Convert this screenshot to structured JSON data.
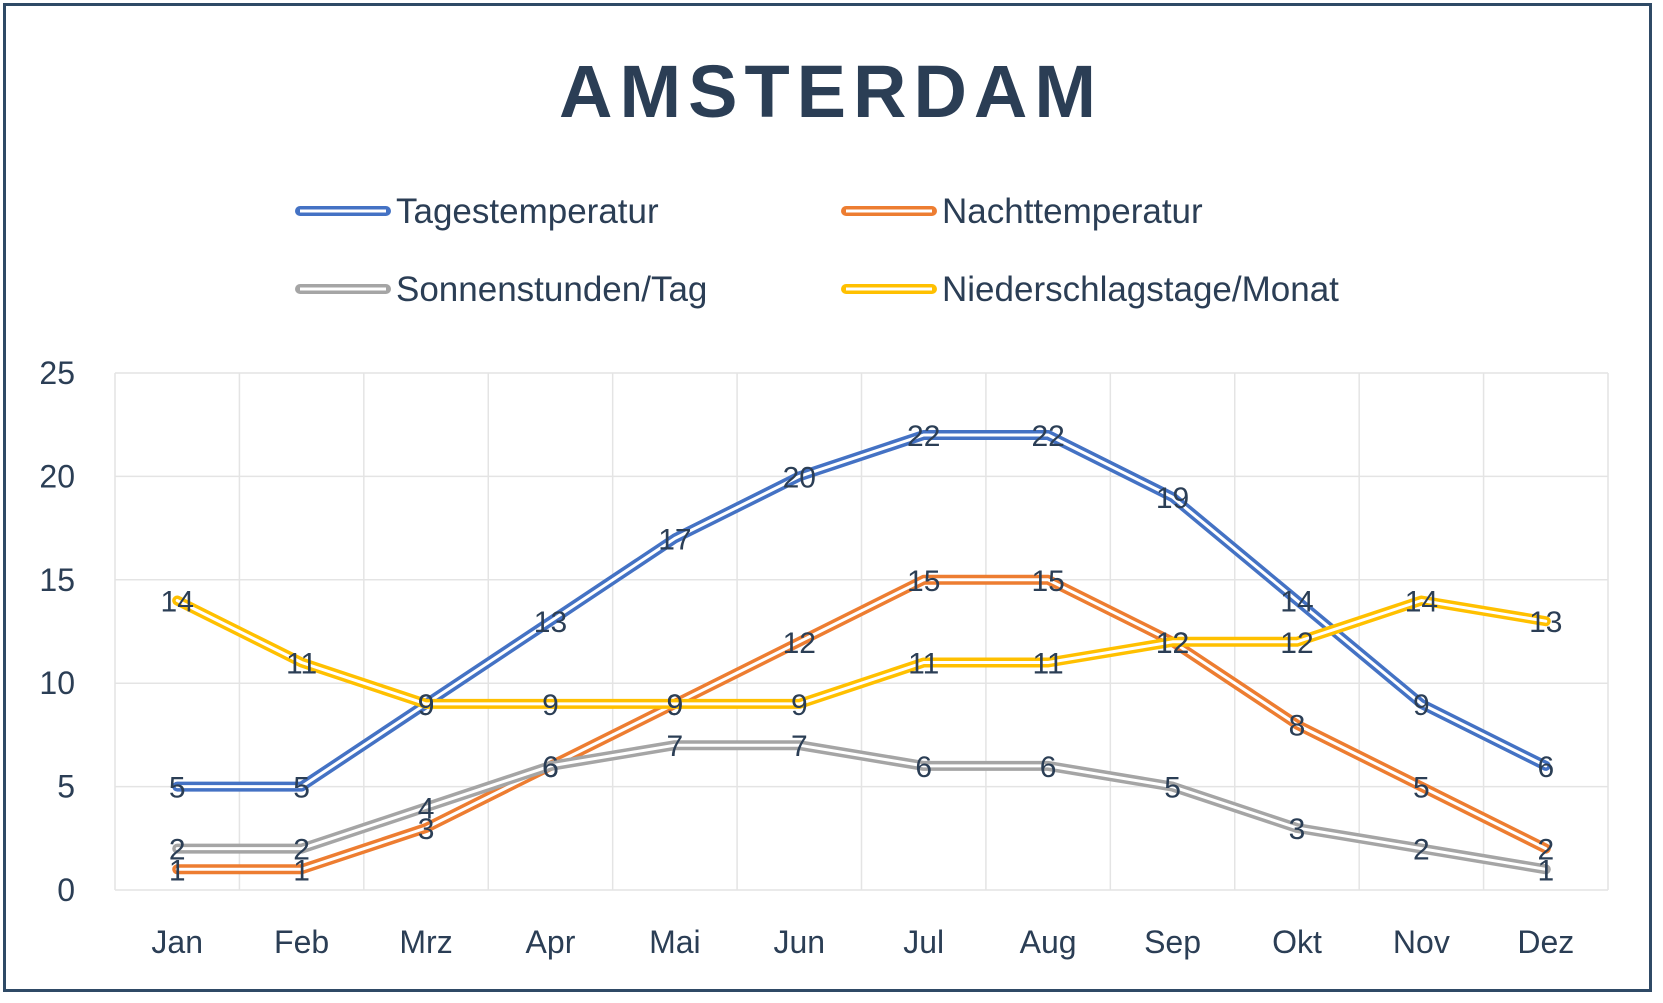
{
  "chart_data": {
    "type": "line",
    "title": "AMSTERDAM",
    "categories": [
      "Jan",
      "Feb",
      "Mrz",
      "Apr",
      "Mai",
      "Jun",
      "Jul",
      "Aug",
      "Sep",
      "Okt",
      "Nov",
      "Dez"
    ],
    "ylim": [
      0,
      25
    ],
    "yticks": [
      "0",
      "5",
      "10",
      "15",
      "20",
      "25"
    ],
    "grid": true,
    "legend_position": "top",
    "data_labels": true,
    "series": [
      {
        "name": "Tagestemperatur",
        "color": "#4472c4",
        "values": [
          5,
          5,
          9,
          13,
          17,
          20,
          22,
          22,
          19,
          14,
          9,
          6
        ]
      },
      {
        "name": "Nachttemperatur",
        "color": "#ed7d31",
        "values": [
          1,
          1,
          3,
          6,
          9,
          12,
          15,
          15,
          12,
          8,
          5,
          2
        ]
      },
      {
        "name": "Sonnenstunden/Tag",
        "color": "#a5a5a5",
        "values": [
          2,
          2,
          4,
          6,
          7,
          7,
          6,
          6,
          5,
          3,
          2,
          1
        ]
      },
      {
        "name": "Niederschlagstage/Monat",
        "color": "#ffc000",
        "values": [
          14,
          11,
          9,
          9,
          9,
          9,
          11,
          11,
          12,
          12,
          14,
          13
        ]
      }
    ]
  }
}
